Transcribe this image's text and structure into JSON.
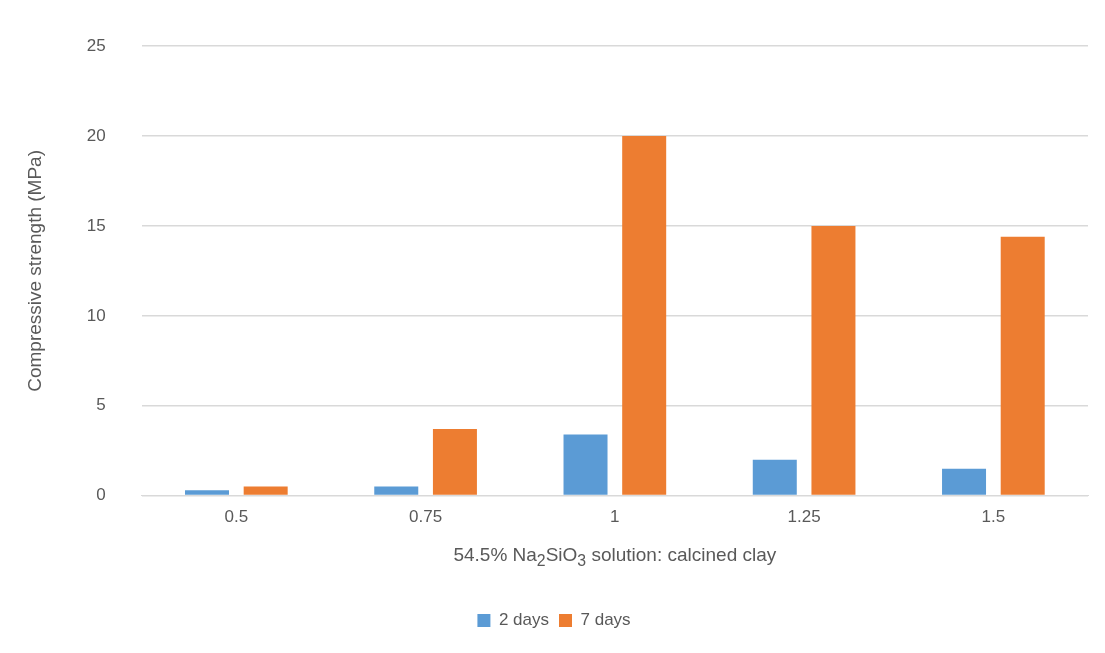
{
  "chart_data": {
    "type": "bar",
    "xlabel": "54.5% Na$_{2}$SiO$_{3}$ solution: calcined clay",
    "ylabel": "Compressive strength (MPa)",
    "categories": [
      "0.5",
      "0.75",
      "1",
      "1.25",
      "1.5"
    ],
    "series": [
      {
        "name": "2 days",
        "color": "#5b9bd5",
        "values": [
          0.3,
          0.5,
          3.4,
          2.0,
          1.5
        ]
      },
      {
        "name": "7 days",
        "color": "#ed7d31",
        "values": [
          0.5,
          3.7,
          20.0,
          15.0,
          14.4
        ]
      }
    ],
    "ylim": [
      0,
      25
    ],
    "yticks": [
      0,
      5,
      10,
      15,
      20,
      25
    ],
    "grid": "y",
    "legend": "bottom"
  }
}
